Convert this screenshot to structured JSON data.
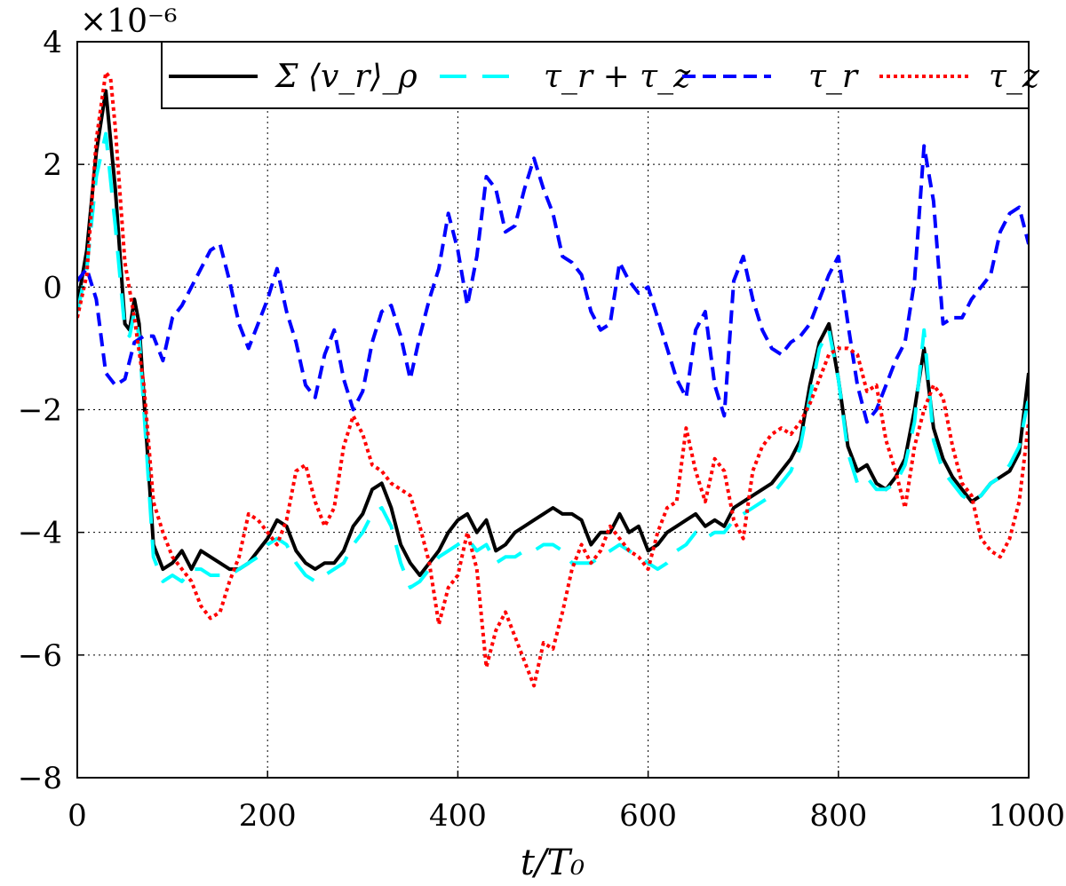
{
  "chart_data": {
    "type": "line",
    "xlabel": "t/T₀",
    "ylabel": "",
    "scale_label": "×10⁻⁶",
    "xlim": [
      0,
      1000
    ],
    "ylim": [
      -8,
      4
    ],
    "x_ticks": [
      0,
      200,
      400,
      600,
      800,
      1000
    ],
    "x_tick_labels": [
      "0",
      "200",
      "400",
      "600",
      "800",
      "1000"
    ],
    "y_ticks": [
      -8,
      -6,
      -4,
      -2,
      0,
      2,
      4
    ],
    "y_tick_labels": [
      "−8",
      "−6",
      "−4",
      "−2",
      "0",
      "2",
      "4"
    ],
    "grid": true,
    "legend_position": "top",
    "series": [
      {
        "name": "Σ ⟨v_r⟩_ρ",
        "color": "#000000",
        "style": "solid",
        "x": [
          0,
          10,
          20,
          30,
          40,
          50,
          55,
          60,
          65,
          70,
          80,
          90,
          100,
          110,
          120,
          130,
          140,
          150,
          160,
          170,
          180,
          190,
          200,
          210,
          220,
          230,
          240,
          250,
          260,
          270,
          280,
          290,
          300,
          310,
          320,
          330,
          340,
          350,
          360,
          370,
          380,
          390,
          400,
          410,
          420,
          430,
          440,
          450,
          460,
          470,
          480,
          490,
          500,
          510,
          520,
          530,
          540,
          550,
          560,
          570,
          580,
          590,
          600,
          610,
          620,
          630,
          640,
          650,
          660,
          670,
          680,
          690,
          700,
          710,
          720,
          730,
          740,
          750,
          760,
          770,
          780,
          790,
          800,
          810,
          820,
          830,
          840,
          850,
          860,
          870,
          880,
          890,
          900,
          910,
          920,
          930,
          940,
          950,
          960,
          970,
          980,
          990,
          1000
        ],
        "y": [
          -0.3,
          0.6,
          2.2,
          3.2,
          1.6,
          -0.6,
          -0.7,
          -0.2,
          -0.6,
          -1.8,
          -4.2,
          -4.6,
          -4.5,
          -4.3,
          -4.6,
          -4.3,
          -4.4,
          -4.5,
          -4.6,
          -4.6,
          -4.5,
          -4.3,
          -4.1,
          -3.8,
          -3.9,
          -4.3,
          -4.5,
          -4.6,
          -4.5,
          -4.5,
          -4.3,
          -3.9,
          -3.7,
          -3.3,
          -3.2,
          -3.6,
          -4.2,
          -4.5,
          -4.7,
          -4.5,
          -4.3,
          -4.0,
          -3.8,
          -3.7,
          -4.0,
          -3.8,
          -4.3,
          -4.2,
          -4.0,
          -3.9,
          -3.8,
          -3.7,
          -3.6,
          -3.7,
          -3.7,
          -3.8,
          -4.2,
          -4.0,
          -4.0,
          -3.7,
          -4.0,
          -3.9,
          -4.3,
          -4.2,
          -4.0,
          -3.9,
          -3.8,
          -3.7,
          -3.9,
          -3.8,
          -3.9,
          -3.6,
          -3.5,
          -3.4,
          -3.3,
          -3.2,
          -3.0,
          -2.8,
          -2.5,
          -1.6,
          -0.9,
          -0.6,
          -1.5,
          -2.6,
          -3.0,
          -2.9,
          -3.2,
          -3.3,
          -3.1,
          -2.8,
          -2.0,
          -1.0,
          -2.3,
          -2.8,
          -3.1,
          -3.3,
          -3.5,
          -3.4,
          -3.2,
          -3.1,
          -3.0,
          -2.7,
          -1.4
        ]
      },
      {
        "name": "τ_r + τ_z",
        "color": "#00ffff",
        "style": "longdash",
        "x": [
          0,
          10,
          20,
          30,
          40,
          50,
          55,
          60,
          65,
          70,
          80,
          90,
          100,
          110,
          120,
          130,
          140,
          150,
          160,
          170,
          180,
          190,
          200,
          210,
          220,
          230,
          240,
          250,
          260,
          270,
          280,
          290,
          300,
          310,
          320,
          330,
          340,
          350,
          360,
          370,
          380,
          390,
          400,
          410,
          420,
          430,
          440,
          450,
          460,
          470,
          480,
          490,
          500,
          510,
          520,
          530,
          540,
          550,
          560,
          570,
          580,
          590,
          600,
          610,
          620,
          630,
          640,
          650,
          660,
          670,
          680,
          690,
          700,
          710,
          720,
          730,
          740,
          750,
          760,
          770,
          780,
          790,
          800,
          810,
          820,
          830,
          840,
          850,
          860,
          870,
          880,
          890,
          900,
          910,
          920,
          930,
          940,
          950,
          960,
          970,
          980,
          990,
          1000
        ],
        "y": [
          -0.4,
          0.3,
          1.8,
          2.5,
          1.0,
          -0.7,
          -0.8,
          -0.4,
          -0.8,
          -2.0,
          -4.4,
          -4.8,
          -4.7,
          -4.8,
          -4.6,
          -4.6,
          -4.7,
          -4.7,
          -4.7,
          -4.6,
          -4.5,
          -4.4,
          -4.2,
          -4.1,
          -4.2,
          -4.5,
          -4.7,
          -4.8,
          -4.7,
          -4.6,
          -4.5,
          -4.2,
          -4.0,
          -3.7,
          -3.6,
          -3.9,
          -4.5,
          -4.9,
          -4.8,
          -4.6,
          -4.4,
          -4.3,
          -4.2,
          -4.1,
          -4.3,
          -4.2,
          -4.5,
          -4.4,
          -4.4,
          -4.3,
          -4.3,
          -4.2,
          -4.2,
          -4.3,
          -4.5,
          -4.5,
          -4.5,
          -4.4,
          -4.3,
          -4.2,
          -4.3,
          -4.4,
          -4.5,
          -4.6,
          -4.5,
          -4.3,
          -4.2,
          -4.0,
          -4.1,
          -4.0,
          -4.0,
          -3.8,
          -3.7,
          -3.6,
          -3.5,
          -3.4,
          -3.2,
          -3.0,
          -2.6,
          -1.8,
          -1.0,
          -0.7,
          -1.5,
          -2.7,
          -3.2,
          -3.1,
          -3.3,
          -3.3,
          -3.2,
          -2.9,
          -2.2,
          -0.7,
          -2.5,
          -3.0,
          -3.2,
          -3.4,
          -3.5,
          -3.4,
          -3.2,
          -3.1,
          -2.9,
          -2.6,
          -1.8
        ]
      },
      {
        "name": "τ_r",
        "color": "#0000ff",
        "style": "dash",
        "x": [
          0,
          10,
          20,
          30,
          40,
          50,
          60,
          70,
          80,
          90,
          100,
          110,
          120,
          130,
          140,
          150,
          160,
          170,
          180,
          190,
          200,
          210,
          220,
          230,
          240,
          250,
          260,
          270,
          280,
          290,
          300,
          310,
          320,
          330,
          340,
          350,
          360,
          370,
          380,
          390,
          400,
          410,
          420,
          430,
          440,
          450,
          460,
          470,
          480,
          490,
          500,
          510,
          520,
          530,
          540,
          550,
          560,
          570,
          580,
          590,
          600,
          610,
          620,
          630,
          640,
          650,
          660,
          670,
          680,
          690,
          700,
          710,
          720,
          730,
          740,
          750,
          760,
          770,
          780,
          790,
          800,
          810,
          820,
          830,
          840,
          850,
          860,
          870,
          880,
          890,
          900,
          910,
          920,
          930,
          940,
          950,
          960,
          970,
          980,
          990,
          1000
        ],
        "y": [
          0.1,
          0.3,
          -0.2,
          -1.4,
          -1.6,
          -1.5,
          -0.9,
          -0.8,
          -0.8,
          -1.2,
          -0.5,
          -0.3,
          0.0,
          0.3,
          0.6,
          0.7,
          0.1,
          -0.6,
          -1.0,
          -0.6,
          -0.2,
          0.3,
          -0.4,
          -0.9,
          -1.6,
          -1.8,
          -1.1,
          -0.7,
          -1.5,
          -2.0,
          -1.7,
          -0.9,
          -0.4,
          -0.3,
          -0.8,
          -1.5,
          -0.8,
          -0.2,
          0.3,
          1.2,
          0.6,
          -0.3,
          0.5,
          1.8,
          1.6,
          0.9,
          1.0,
          1.6,
          2.1,
          1.6,
          1.2,
          0.5,
          0.4,
          0.2,
          -0.4,
          -0.7,
          -0.6,
          0.4,
          0.1,
          -0.1,
          0.0,
          -0.5,
          -1.0,
          -1.5,
          -1.8,
          -0.7,
          -0.4,
          -1.6,
          -2.1,
          0.1,
          0.5,
          -0.2,
          -0.7,
          -1.0,
          -1.1,
          -0.9,
          -0.8,
          -0.6,
          -0.2,
          0.2,
          0.5,
          -0.6,
          -1.6,
          -2.2,
          -2.0,
          -1.6,
          -1.2,
          -0.9,
          0.1,
          2.3,
          1.4,
          -0.6,
          -0.5,
          -0.5,
          -0.2,
          0.0,
          0.2,
          0.9,
          1.2,
          1.3,
          0.7
        ]
      },
      {
        "name": "τ_z",
        "color": "#ff0000",
        "style": "dot",
        "x": [
          0,
          10,
          20,
          30,
          35,
          40,
          50,
          60,
          70,
          80,
          90,
          100,
          110,
          120,
          130,
          140,
          150,
          160,
          170,
          180,
          190,
          200,
          210,
          220,
          230,
          240,
          250,
          260,
          270,
          280,
          290,
          300,
          310,
          320,
          330,
          340,
          350,
          360,
          370,
          380,
          390,
          400,
          410,
          420,
          430,
          440,
          450,
          460,
          470,
          480,
          490,
          500,
          510,
          520,
          530,
          540,
          550,
          560,
          570,
          580,
          590,
          600,
          610,
          620,
          630,
          640,
          650,
          660,
          670,
          680,
          690,
          700,
          710,
          720,
          730,
          740,
          750,
          760,
          770,
          780,
          790,
          800,
          810,
          820,
          830,
          840,
          850,
          860,
          870,
          880,
          890,
          900,
          910,
          920,
          930,
          940,
          950,
          960,
          970,
          980,
          990,
          1000
        ],
        "y": [
          -0.5,
          0.2,
          2.4,
          3.5,
          3.4,
          2.6,
          0.4,
          -0.5,
          -1.6,
          -3.5,
          -4.0,
          -4.4,
          -4.6,
          -4.8,
          -5.2,
          -5.4,
          -5.3,
          -4.8,
          -4.4,
          -3.7,
          -3.8,
          -4.0,
          -4.2,
          -3.8,
          -3.0,
          -2.9,
          -3.5,
          -3.9,
          -3.6,
          -2.6,
          -2.1,
          -2.4,
          -2.9,
          -3.0,
          -3.2,
          -3.3,
          -3.4,
          -3.9,
          -4.5,
          -5.5,
          -4.9,
          -4.7,
          -4.0,
          -4.6,
          -6.2,
          -5.6,
          -5.3,
          -5.7,
          -6.1,
          -6.5,
          -5.8,
          -5.9,
          -5.3,
          -4.6,
          -4.2,
          -4.5,
          -4.3,
          -3.9,
          -4.1,
          -4.3,
          -4.4,
          -4.6,
          -4.0,
          -3.6,
          -3.5,
          -2.3,
          -3.0,
          -3.5,
          -2.8,
          -3.0,
          -3.8,
          -4.1,
          -3.0,
          -2.6,
          -2.4,
          -2.3,
          -2.4,
          -2.2,
          -1.9,
          -1.5,
          -1.1,
          -1.0,
          -1.0,
          -1.1,
          -1.7,
          -1.6,
          -2.5,
          -3.0,
          -3.6,
          -2.6,
          -2.0,
          -1.6,
          -1.8,
          -2.6,
          -3.2,
          -3.4,
          -4.1,
          -4.3,
          -4.4,
          -4.1,
          -3.5,
          -2.2
        ]
      }
    ]
  }
}
